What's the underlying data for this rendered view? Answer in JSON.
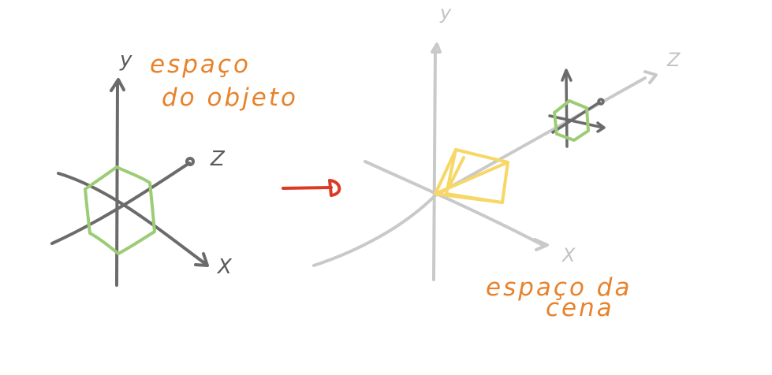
{
  "colors": {
    "dark_axis": "#6b6b6b",
    "light_axis": "#c9c9c9",
    "green_object": "#9ccc76",
    "yellow_object": "#f7d766",
    "orange_text": "#e8822b",
    "red_arrow": "#dd3a26"
  },
  "object_space": {
    "label_line1": "espaço",
    "label_line2": "do objeto",
    "axis_y": "y",
    "axis_z": "Z",
    "axis_x": "X"
  },
  "scene_space": {
    "label_line1": "espaço da",
    "label_line2": "cena",
    "axis_y": "y",
    "axis_z": "Z",
    "axis_x": "X"
  },
  "transform_arrow": {
    "icon": "right-arrow-icon"
  }
}
